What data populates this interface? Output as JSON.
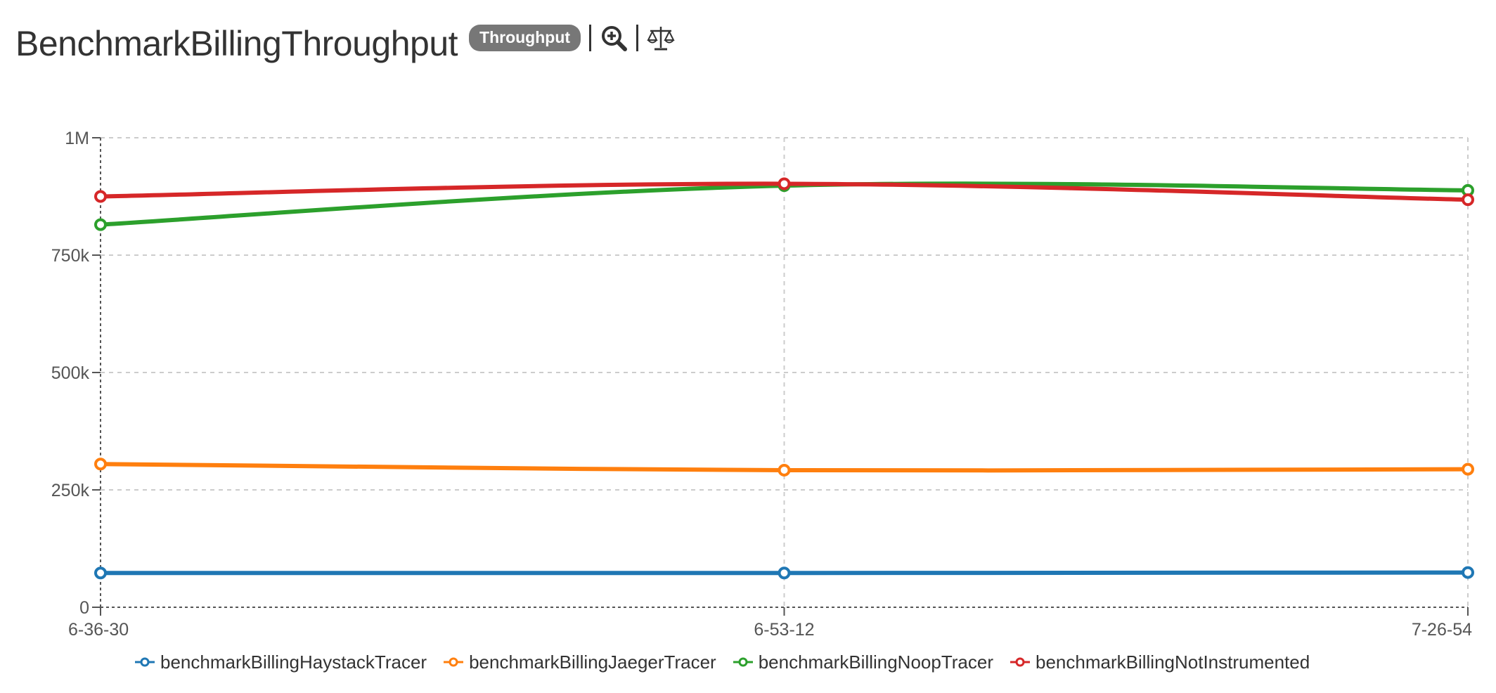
{
  "header": {
    "title": "BenchmarkBillingThroughput",
    "badge": "Throughput",
    "zoom_icon": "zoom-in-icon",
    "compare_icon": "balance-scale-icon"
  },
  "chart_data": {
    "type": "line",
    "categories": [
      "6-36-30",
      "6-53-12",
      "7-26-54"
    ],
    "x": [
      "6-36-30",
      "6-53-12",
      "7-26-54"
    ],
    "ylim": [
      0,
      1000000
    ],
    "yticks": [
      0,
      250000,
      500000,
      750000,
      1000000
    ],
    "ytick_labels": [
      "0",
      "250k",
      "500k",
      "750k",
      "1M"
    ],
    "grid": true,
    "legend_position": "bottom",
    "title": "",
    "xlabel": "",
    "ylabel": "",
    "series": [
      {
        "name": "benchmarkBillingHaystackTracer",
        "color": "#1f77b4",
        "values": [
          73000,
          73000,
          74000
        ]
      },
      {
        "name": "benchmarkBillingJaegerTracer",
        "color": "#ff7f0e",
        "values": [
          305000,
          292000,
          294000
        ]
      },
      {
        "name": "benchmarkBillingNoopTracer",
        "color": "#2ca02c",
        "values": [
          815000,
          898000,
          888000
        ]
      },
      {
        "name": "benchmarkBillingNotInstrumented",
        "color": "#d62728",
        "values": [
          875000,
          902000,
          868000
        ]
      }
    ]
  }
}
